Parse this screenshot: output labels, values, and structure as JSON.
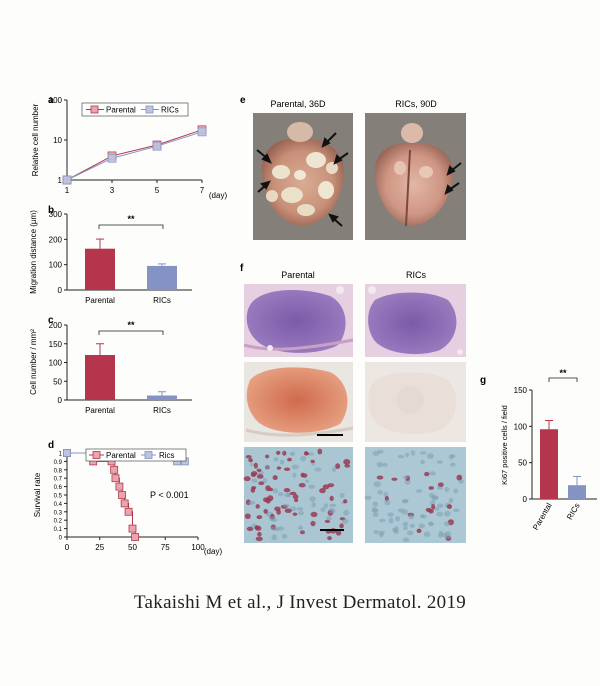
{
  "figure": {
    "caption": "Takaishi M et al., J Invest Dermatol. 2019",
    "colors": {
      "parental": "#b5364c",
      "rics": "#8593c4",
      "parental_fill": "#e8a5ad",
      "rics_fill": "#bcc4e0"
    }
  },
  "panel_labels": {
    "a": "a",
    "b": "b",
    "c": "c",
    "d": "d",
    "e": "e",
    "f": "f",
    "g": "g"
  },
  "panel_e": {
    "left_title": "Parental, 36D",
    "right_title": "RICs, 90D"
  },
  "panel_f": {
    "left_title": "Parental",
    "right_title": "RICs"
  },
  "chart_data": [
    {
      "panel": "a",
      "type": "line",
      "ylabel": "Relative cell number",
      "xlabel": "(day)",
      "yscale": "log",
      "x": [
        1,
        3,
        5,
        7
      ],
      "x_ticks": [
        "1",
        "3",
        "5",
        "7"
      ],
      "y_ticks": [
        "1",
        "10",
        "100"
      ],
      "ylim": [
        1,
        100
      ],
      "legend": [
        "Parental",
        "RICs"
      ],
      "legend_position": "top-left",
      "series": [
        {
          "name": "Parental",
          "values": [
            1,
            4,
            7.5,
            18
          ]
        },
        {
          "name": "RICs",
          "values": [
            1,
            3.5,
            7,
            16
          ]
        }
      ]
    },
    {
      "panel": "b",
      "type": "bar",
      "ylabel": "Migration distance (µm)",
      "categories": [
        "Parental",
        "RICs"
      ],
      "values": [
        163,
        95
      ],
      "errors": [
        38,
        8
      ],
      "ylim": [
        0,
        300
      ],
      "y_ticks": [
        "0",
        "100",
        "200",
        "300"
      ],
      "significance": "**"
    },
    {
      "panel": "c",
      "type": "bar",
      "ylabel": "Cell number / mm²",
      "categories": [
        "Parental",
        "RICs"
      ],
      "values": [
        120,
        12
      ],
      "errors": [
        30,
        10
      ],
      "ylim": [
        0,
        200
      ],
      "y_ticks": [
        "0",
        "50",
        "100",
        "150",
        "200"
      ],
      "significance": "**"
    },
    {
      "panel": "d",
      "type": "line",
      "ylabel": "Survival rate",
      "xlabel": "(day)",
      "legend": [
        "Parental",
        "Rics"
      ],
      "legend_position": "top",
      "ylim": [
        0,
        1
      ],
      "xlim": [
        0,
        100
      ],
      "x_ticks": [
        "0",
        "25",
        "50",
        "75",
        "100"
      ],
      "y_ticks": [
        "0",
        "0.1",
        "0.2",
        "0.3",
        "0.4",
        "0.5",
        "0.6",
        "0.7",
        "0.8",
        "0.9",
        "1"
      ],
      "annotation": "P < 0.001",
      "series": [
        {
          "name": "Parental",
          "x": [
            0,
            20,
            20,
            34,
            36,
            37,
            40,
            42,
            44,
            47,
            50,
            52
          ],
          "y": [
            1,
            1,
            0.9,
            0.9,
            0.8,
            0.7,
            0.6,
            0.5,
            0.4,
            0.3,
            0.1,
            0
          ]
        },
        {
          "name": "Rics",
          "x": [
            0,
            84,
            84,
            90
          ],
          "y": [
            1,
            1,
            0.9,
            0.9
          ]
        }
      ]
    },
    {
      "panel": "g",
      "type": "bar",
      "ylabel": "Ki67 positive cells / field",
      "categories": [
        "Parental",
        "RICs"
      ],
      "values": [
        96,
        19
      ],
      "errors": [
        12,
        12
      ],
      "ylim": [
        0,
        150
      ],
      "y_ticks": [
        "0",
        "50",
        "100",
        "150"
      ],
      "significance": "**"
    }
  ]
}
